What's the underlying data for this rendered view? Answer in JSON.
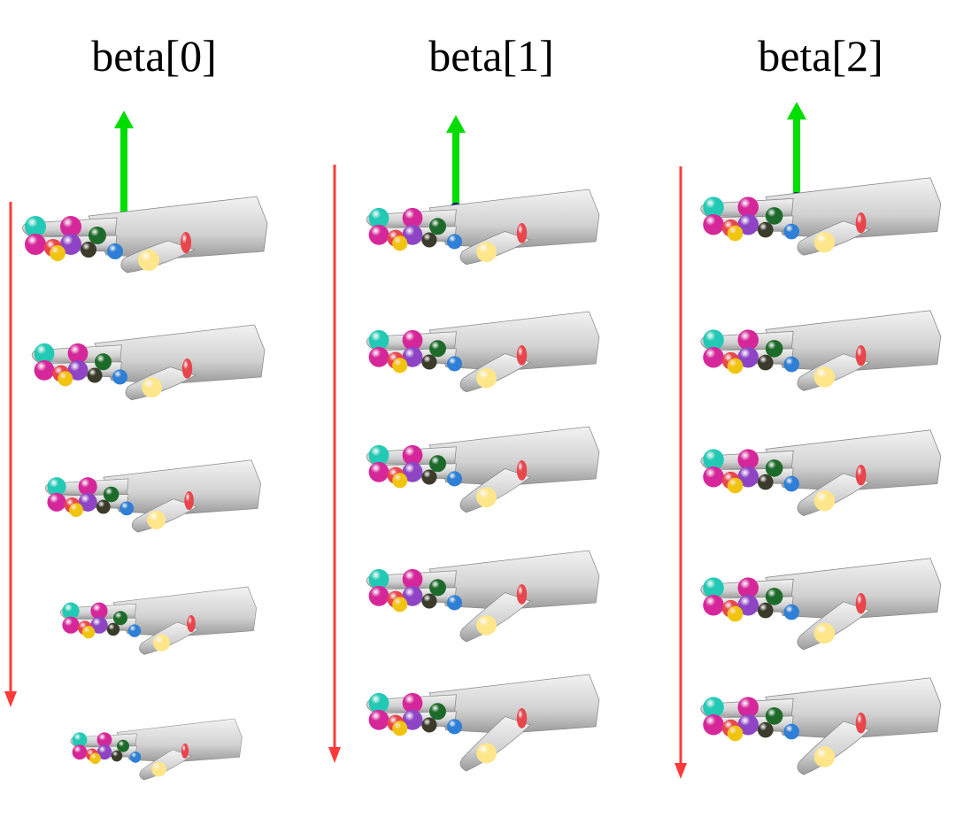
{
  "columns": [
    {
      "title": "beta[0]",
      "hands": 5
    },
    {
      "title": "beta[1]",
      "hands": 5
    },
    {
      "title": "beta[2]",
      "hands": 5
    }
  ],
  "colors": {
    "up_arrow": "#00dd00",
    "down_arrow": "#ff3a3a",
    "joint_blue": "#0a0a7a",
    "hand_mesh": "#d2d2d2",
    "hand_edge": "#8a8a8a",
    "joint_palette": [
      "#22c9b4",
      "#d6279a",
      "#8e44c4",
      "#ffe68a",
      "#e8454d",
      "#1d6b2a",
      "#3b3b2c",
      "#2f7fd6",
      "#f1c40f",
      "#c0392b",
      "#a29bfe",
      "#e67e22"
    ]
  }
}
